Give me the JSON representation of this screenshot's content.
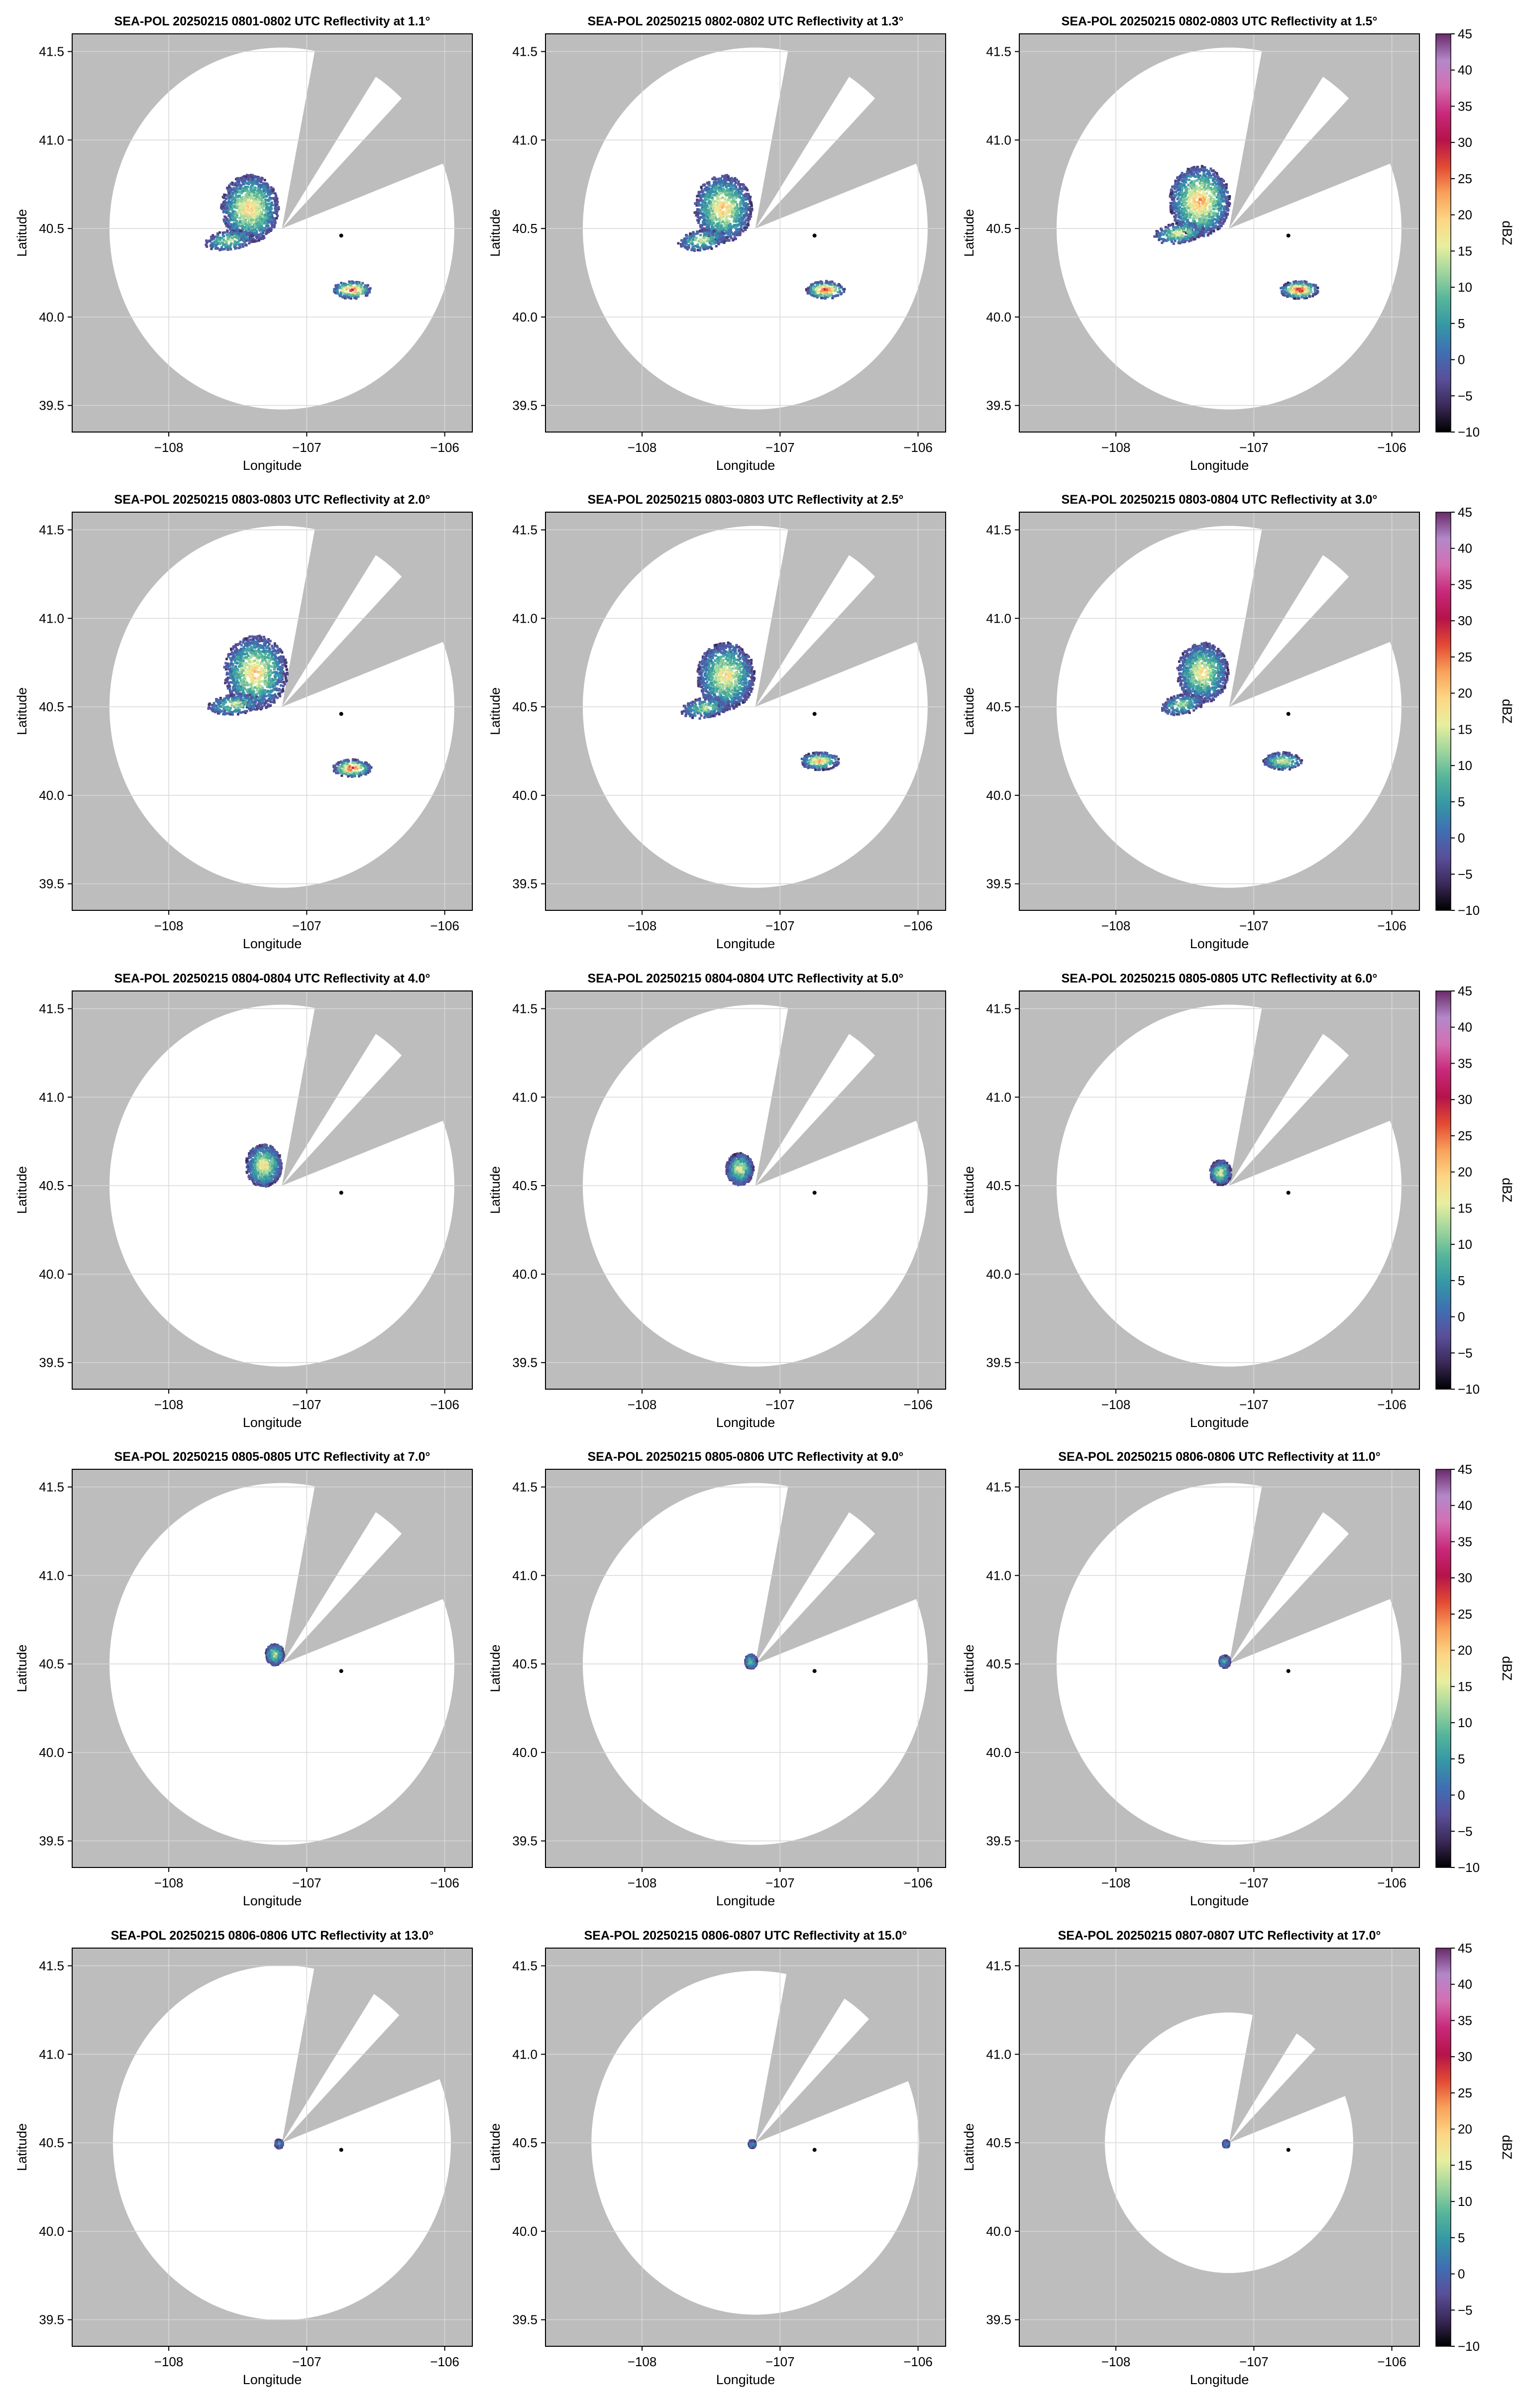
{
  "figure": {
    "background_color": "#ffffff",
    "missing_data_color": "#bdbdbd",
    "radar_site_marker_color": "#000000"
  },
  "chart_data": {
    "type": "heatmap",
    "xlabel": "Longitude",
    "ylabel": "Latitude",
    "xlim": [
      -108.7,
      -105.8
    ],
    "ylim": [
      39.35,
      41.6
    ],
    "xticks": [
      -108,
      -107,
      -106
    ],
    "xtick_labels": [
      "−108",
      "−107",
      "−106"
    ],
    "yticks": [
      39.5,
      40.0,
      40.5,
      41.0,
      41.5
    ],
    "ytick_labels": [
      "39.5",
      "40.0",
      "40.5",
      "41.0",
      "41.5"
    ],
    "grid": true,
    "radar": {
      "lon": -107.18,
      "lat": 40.5,
      "range_deg": 1.42
    },
    "site_marker": {
      "lon": -106.75,
      "lat": 40.46
    },
    "colorbar": {
      "label": "dBZ",
      "vmin": -10,
      "vmax": 45,
      "ticks": [
        -10,
        -5,
        0,
        5,
        10,
        15,
        20,
        25,
        30,
        35,
        40,
        45
      ],
      "tick_labels": [
        "−10",
        "−5",
        "0",
        "5",
        "10",
        "15",
        "20",
        "25",
        "30",
        "35",
        "40",
        "45"
      ],
      "colormap": [
        "#000000",
        "#3b2a5a",
        "#5a4f9a",
        "#3f6fb3",
        "#3597a6",
        "#55b59a",
        "#9fd59d",
        "#e8ef9f",
        "#fdd684",
        "#f9a05a",
        "#e24a33",
        "#b5134a",
        "#c8297a",
        "#d36fb3",
        "#b388c9",
        "#6a2a6a"
      ]
    },
    "panels": [
      {
        "title": "SEA-POL 20250215 0801-0802 UTC Reflectivity at 1.1°",
        "elevation_deg": 1.1,
        "main_cell": {
          "center": [
            -107.42,
            40.62
          ],
          "extent_deg": 0.38,
          "peak_dbz": 22
        },
        "east_cell": {
          "center": [
            -106.68,
            40.16
          ],
          "peak_dbz": 30
        }
      },
      {
        "title": "SEA-POL 20250215 0802-0802 UTC Reflectivity at 1.3°",
        "elevation_deg": 1.3,
        "main_cell": {
          "center": [
            -107.42,
            40.62
          ],
          "extent_deg": 0.38,
          "peak_dbz": 22
        },
        "east_cell": {
          "center": [
            -106.68,
            40.16
          ],
          "peak_dbz": 31
        }
      },
      {
        "title": "SEA-POL 20250215 0802-0803 UTC Reflectivity at 1.5°",
        "elevation_deg": 1.5,
        "main_cell": {
          "center": [
            -107.4,
            40.66
          ],
          "extent_deg": 0.4,
          "peak_dbz": 24
        },
        "east_cell": {
          "center": [
            -106.68,
            40.16
          ],
          "peak_dbz": 32
        }
      },
      {
        "title": "SEA-POL 20250215 0803-0803 UTC Reflectivity at 2.0°",
        "elevation_deg": 2.0,
        "main_cell": {
          "center": [
            -107.38,
            40.7
          ],
          "extent_deg": 0.42,
          "peak_dbz": 22
        },
        "east_cell": {
          "center": [
            -106.68,
            40.16
          ],
          "peak_dbz": 31
        }
      },
      {
        "title": "SEA-POL 20250215 0803-0803 UTC Reflectivity at 2.5°",
        "elevation_deg": 2.5,
        "main_cell": {
          "center": [
            -107.4,
            40.68
          ],
          "extent_deg": 0.38,
          "peak_dbz": 20
        },
        "east_cell": {
          "center": [
            -106.72,
            40.2
          ],
          "peak_dbz": 24
        }
      },
      {
        "title": "SEA-POL 20250215 0803-0804 UTC Reflectivity at 3.0°",
        "elevation_deg": 3.0,
        "main_cell": {
          "center": [
            -107.38,
            40.7
          ],
          "extent_deg": 0.34,
          "peak_dbz": 20
        },
        "east_cell": {
          "center": [
            -106.8,
            40.2
          ],
          "peak_dbz": 18
        }
      },
      {
        "title": "SEA-POL 20250215 0804-0804 UTC Reflectivity at 4.0°",
        "elevation_deg": 4.0,
        "main_cell": {
          "center": [
            -107.32,
            40.62
          ],
          "extent_deg": 0.24,
          "peak_dbz": 20
        },
        "east_cell": null
      },
      {
        "title": "SEA-POL 20250215 0804-0804 UTC Reflectivity at 5.0°",
        "elevation_deg": 5.0,
        "main_cell": {
          "center": [
            -107.3,
            40.6
          ],
          "extent_deg": 0.18,
          "peak_dbz": 18
        },
        "east_cell": null
      },
      {
        "title": "SEA-POL 20250215 0805-0805 UTC Reflectivity at 6.0°",
        "elevation_deg": 6.0,
        "main_cell": {
          "center": [
            -107.25,
            40.58
          ],
          "extent_deg": 0.14,
          "peak_dbz": 18
        },
        "east_cell": null
      },
      {
        "title": "SEA-POL 20250215 0805-0805 UTC Reflectivity at 7.0°",
        "elevation_deg": 7.0,
        "main_cell": {
          "center": [
            -107.24,
            40.56
          ],
          "extent_deg": 0.12,
          "peak_dbz": 16
        },
        "east_cell": null
      },
      {
        "title": "SEA-POL 20250215 0805-0806 UTC Reflectivity at 9.0°",
        "elevation_deg": 9.0,
        "main_cell": {
          "center": [
            -107.22,
            40.52
          ],
          "extent_deg": 0.08,
          "peak_dbz": 12
        },
        "east_cell": null
      },
      {
        "title": "SEA-POL 20250215 0806-0806 UTC Reflectivity at 11.0°",
        "elevation_deg": 11.0,
        "main_cell": {
          "center": [
            -107.22,
            40.52
          ],
          "extent_deg": 0.07,
          "peak_dbz": 10
        },
        "east_cell": null
      },
      {
        "title": "SEA-POL 20250215 0806-0806 UTC Reflectivity at 13.0°",
        "elevation_deg": 13.0,
        "main_cell": {
          "center": [
            -107.21,
            40.5
          ],
          "extent_deg": 0.05,
          "peak_dbz": 8
        },
        "east_cell": null
      },
      {
        "title": "SEA-POL 20250215 0806-0807 UTC Reflectivity at 15.0°",
        "elevation_deg": 15.0,
        "main_cell": {
          "center": [
            -107.21,
            40.5
          ],
          "extent_deg": 0.045,
          "peak_dbz": 6
        },
        "east_cell": null
      },
      {
        "title": "SEA-POL 20250215 0807-0807 UTC Reflectivity at 17.0°",
        "elevation_deg": 17.0,
        "main_cell": {
          "center": [
            -107.21,
            40.5
          ],
          "extent_deg": 0.04,
          "peak_dbz": 6
        },
        "east_cell": null
      }
    ]
  }
}
